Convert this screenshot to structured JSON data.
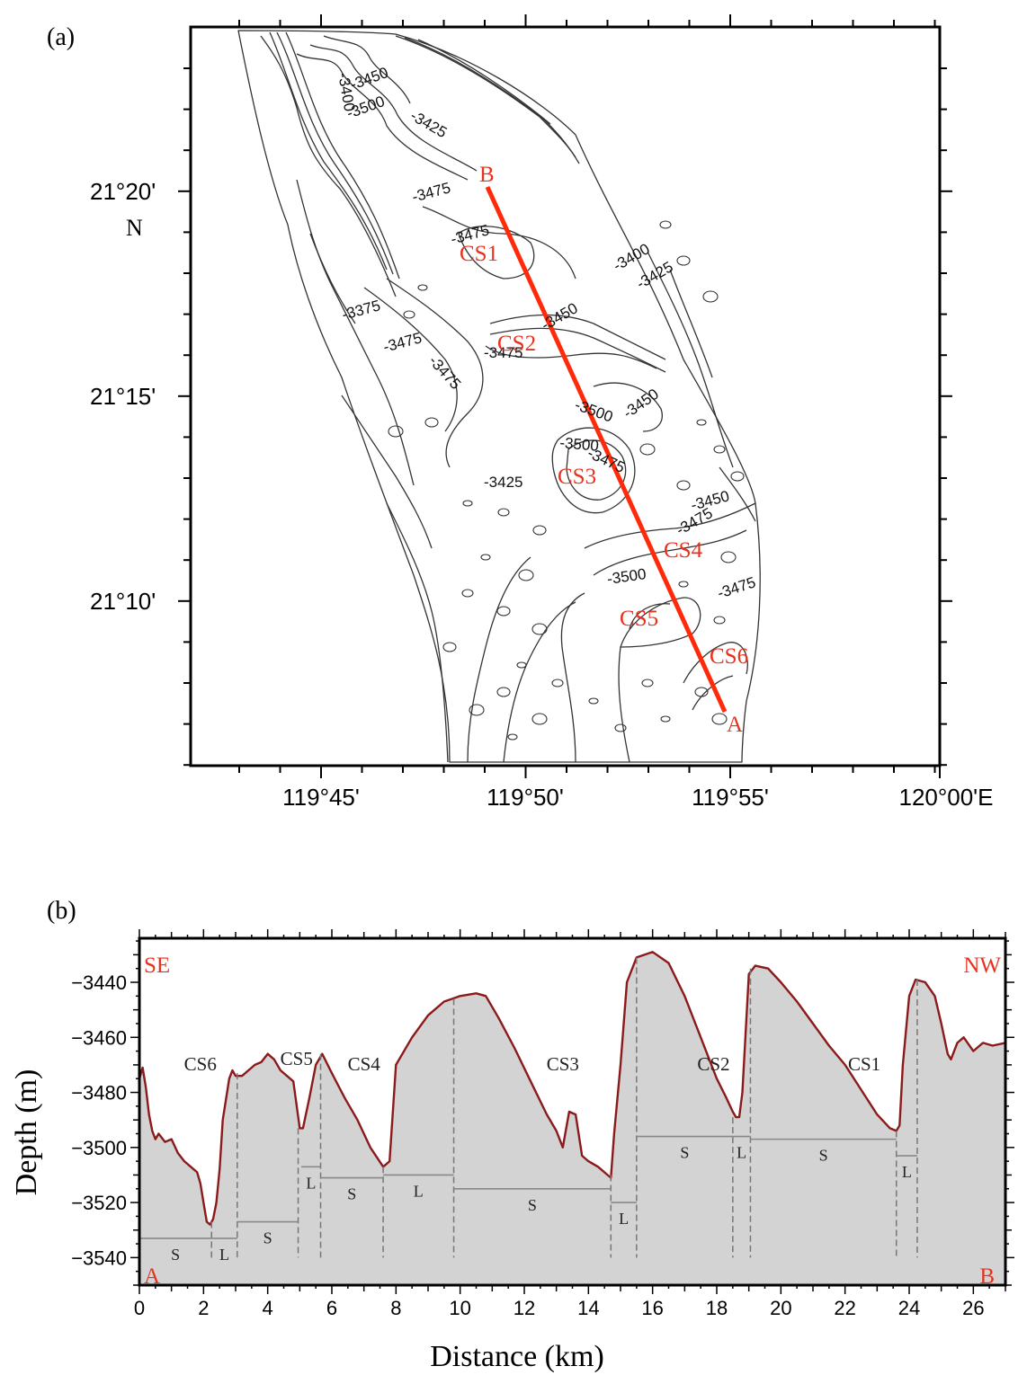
{
  "colors": {
    "track": "#ff2a0a",
    "label_red": "#e8321e",
    "profile_line": "#8b1a1a",
    "fill": "#d3d3d3",
    "contour": "#333333"
  },
  "panel_a": {
    "label": "(a)",
    "lat_ticks": [
      "21°20'",
      "21°15'",
      "21°10'"
    ],
    "lat_unit": "N",
    "lon_ticks": [
      "119°45'",
      "119°50'",
      "119°55'",
      "120°00'E"
    ],
    "points": {
      "A": "A",
      "B": "B"
    },
    "segment_labels": [
      "CS1",
      "CS2",
      "CS3",
      "CS4",
      "CS5",
      "CS6"
    ],
    "contour_labels": [
      "-3450",
      "-3400",
      "-3500",
      "-3425",
      "-3475",
      "-3475",
      "-3400",
      "-3425",
      "-3375",
      "-3450",
      "-3475",
      "-3475",
      "-3475",
      "-3500",
      "-3450",
      "-3500",
      "-3475",
      "-3425",
      "-3450",
      "-3475",
      "-3500",
      "-3475"
    ]
  },
  "chart_data": {
    "type": "area",
    "title": "",
    "label": "(b)",
    "xlabel": "Distance (km)",
    "ylabel": "Depth (m)",
    "xlim": [
      0,
      27
    ],
    "ylim": [
      -3550,
      -3424
    ],
    "xticks": [
      0,
      2,
      4,
      6,
      8,
      10,
      12,
      14,
      16,
      18,
      20,
      22,
      24,
      26
    ],
    "yticks": [
      -3440,
      -3460,
      -3480,
      -3500,
      -3520,
      -3540
    ],
    "corner_labels": {
      "top_left": "SE",
      "top_right": "NW",
      "bottom_left": "A",
      "bottom_right": "B"
    },
    "x": [
      0,
      0.1,
      0.2,
      0.3,
      0.4,
      0.5,
      0.6,
      0.8,
      1.0,
      1.2,
      1.4,
      1.6,
      1.8,
      1.9,
      2.0,
      2.1,
      2.2,
      2.3,
      2.4,
      2.5,
      2.6,
      2.8,
      2.9,
      3.0,
      3.2,
      3.4,
      3.6,
      3.8,
      4.0,
      4.2,
      4.4,
      4.6,
      4.8,
      5.0,
      5.1,
      5.3,
      5.5,
      5.7,
      6.0,
      6.4,
      6.8,
      7.2,
      7.6,
      7.8,
      8.0,
      8.5,
      9.0,
      9.5,
      10.0,
      10.5,
      10.8,
      11.2,
      11.7,
      12.2,
      12.7,
      13.0,
      13.2,
      13.4,
      13.6,
      13.8,
      14.0,
      14.3,
      14.6,
      14.7,
      14.8,
      15.0,
      15.2,
      15.5,
      16.0,
      16.5,
      17.0,
      17.5,
      18.0,
      18.3,
      18.5,
      18.6,
      18.7,
      18.8,
      19.0,
      19.2,
      19.6,
      20.0,
      20.5,
      21.0,
      21.5,
      22.0,
      22.5,
      23.0,
      23.4,
      23.6,
      23.7,
      23.8,
      24.0,
      24.2,
      24.5,
      24.8,
      25.0,
      25.2,
      25.3,
      25.5,
      25.7,
      26.0,
      26.3,
      26.6,
      27.0
    ],
    "y": [
      -3475,
      -3471,
      -3478,
      -3488,
      -3494,
      -3497,
      -3495,
      -3498,
      -3497,
      -3502,
      -3505,
      -3507,
      -3509,
      -3513,
      -3520,
      -3527,
      -3528,
      -3526,
      -3520,
      -3508,
      -3490,
      -3475,
      -3472,
      -3474,
      -3474,
      -3472,
      -3470,
      -3469,
      -3466,
      -3468,
      -3472,
      -3474,
      -3476,
      -3493,
      -3493,
      -3482,
      -3470,
      -3466,
      -3473,
      -3482,
      -3490,
      -3500,
      -3507,
      -3505,
      -3470,
      -3460,
      -3452,
      -3447,
      -3445,
      -3444,
      -3445,
      -3453,
      -3464,
      -3476,
      -3488,
      -3494,
      -3500,
      -3487,
      -3488,
      -3503,
      -3505,
      -3507,
      -3510,
      -3511,
      -3495,
      -3470,
      -3440,
      -3431,
      -3429,
      -3433,
      -3445,
      -3460,
      -3475,
      -3482,
      -3487,
      -3489,
      -3489,
      -3480,
      -3437,
      -3434,
      -3435,
      -3440,
      -3447,
      -3455,
      -3463,
      -3470,
      -3479,
      -3488,
      -3493,
      -3494,
      -3492,
      -3470,
      -3445,
      -3439,
      -3440,
      -3445,
      -3455,
      -3466,
      -3468,
      -3462,
      -3460,
      -3465,
      -3462,
      -3463,
      -3462
    ],
    "segment_labels": [
      {
        "text": "CS6",
        "x": 1.9,
        "y": -3472
      },
      {
        "text": "CS5",
        "x": 4.9,
        "y": -3470
      },
      {
        "text": "CS4",
        "x": 7.0,
        "y": -3472
      },
      {
        "text": "CS3",
        "x": 13.2,
        "y": -3472
      },
      {
        "text": "CS2",
        "x": 17.9,
        "y": -3472
      },
      {
        "text": "CS1",
        "x": 22.6,
        "y": -3472
      }
    ],
    "dashed_lines": [
      {
        "x": 2.25,
        "top": -3527
      },
      {
        "x": 3.05,
        "top": -3473
      },
      {
        "x": 4.95,
        "top": -3493
      },
      {
        "x": 5.65,
        "top": -3466
      },
      {
        "x": 7.6,
        "top": -3507
      },
      {
        "x": 9.8,
        "top": -3446
      },
      {
        "x": 14.7,
        "top": -3510
      },
      {
        "x": 15.5,
        "top": -3431
      },
      {
        "x": 18.5,
        "top": -3489
      },
      {
        "x": 19.05,
        "top": -3435
      },
      {
        "x": 23.6,
        "top": -3494
      },
      {
        "x": 24.25,
        "top": -3439
      }
    ],
    "brackets": [
      {
        "text": "S",
        "x1": 0.0,
        "x2": 2.25,
        "y": -3533
      },
      {
        "text": "L",
        "x1": 2.25,
        "x2": 3.05,
        "y": -3533
      },
      {
        "text": "S",
        "x1": 3.05,
        "x2": 4.95,
        "y": -3527
      },
      {
        "text": "L",
        "x1": 5.05,
        "x2": 5.65,
        "y": -3507
      },
      {
        "text": "S",
        "x1": 5.65,
        "x2": 7.6,
        "y": -3511
      },
      {
        "text": "L",
        "x1": 7.6,
        "x2": 9.8,
        "y": -3510
      },
      {
        "text": "S",
        "x1": 9.8,
        "x2": 14.7,
        "y": -3515
      },
      {
        "text": "L",
        "x1": 14.7,
        "x2": 15.5,
        "y": -3520
      },
      {
        "text": "S",
        "x1": 15.5,
        "x2": 18.5,
        "y": -3496
      },
      {
        "text": "L",
        "x1": 18.5,
        "x2": 19.05,
        "y": -3496
      },
      {
        "text": "S",
        "x1": 19.05,
        "x2": 23.6,
        "y": -3497
      },
      {
        "text": "L",
        "x1": 23.6,
        "x2": 24.25,
        "y": -3503
      }
    ]
  }
}
